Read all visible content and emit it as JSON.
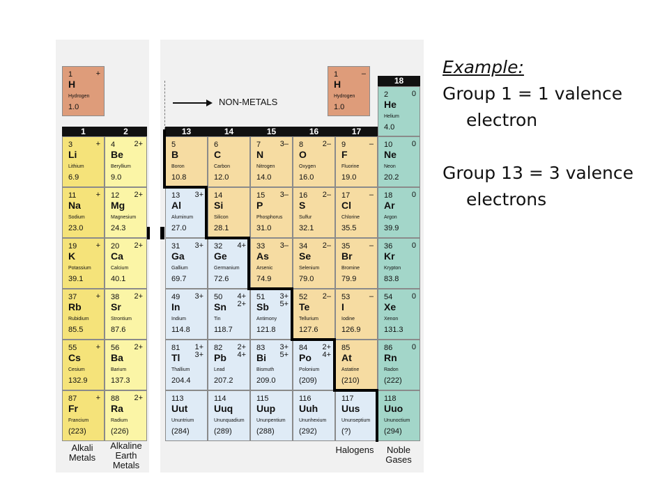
{
  "colors": {
    "alkali": "#f5e37a",
    "alkaline_earth": "#fbf5a6",
    "nonmetal": "#f6dca2",
    "metal": "#dfebf6",
    "noble": "#a3d6c9",
    "hydrogen": "#de9c7a"
  },
  "text_panel": {
    "example_heading": "Example:",
    "line1a": "Group 1 = 1 valence",
    "line1b": "electron",
    "line2a": "Group 13 = 3 valence",
    "line2b": "electrons"
  },
  "table": {
    "non_metals_label": "NON-METALS",
    "group_headers": [
      "1",
      "2",
      "13",
      "14",
      "15",
      "16",
      "17",
      "18"
    ],
    "bottom_labels": {
      "alkali": "Alkali\nMetals",
      "alkaline": "Alkaline\nEarth\nMetals",
      "halogens": "Halogens",
      "noble": "Noble\nGases"
    },
    "hydrogen_left": {
      "number": "1",
      "charge": "+",
      "symbol": "H",
      "name": "Hydrogen",
      "mass": "1.0"
    },
    "hydrogen_right": {
      "number": "1",
      "charge": "–",
      "symbol": "H",
      "name": "Hydrogen",
      "mass": "1.0"
    },
    "group1": [
      {
        "number": "3",
        "charge": "+",
        "symbol": "Li",
        "name": "Lithium",
        "mass": "6.9"
      },
      {
        "number": "11",
        "charge": "+",
        "symbol": "Na",
        "name": "Sodium",
        "mass": "23.0"
      },
      {
        "number": "19",
        "charge": "+",
        "symbol": "K",
        "name": "Potassium",
        "mass": "39.1"
      },
      {
        "number": "37",
        "charge": "+",
        "symbol": "Rb",
        "name": "Rubidium",
        "mass": "85.5"
      },
      {
        "number": "55",
        "charge": "+",
        "symbol": "Cs",
        "name": "Cesium",
        "mass": "132.9"
      },
      {
        "number": "87",
        "charge": "+",
        "symbol": "Fr",
        "name": "Francium",
        "mass": "(223)"
      }
    ],
    "group2": [
      {
        "number": "4",
        "charge": "2+",
        "symbol": "Be",
        "name": "Beryllium",
        "mass": "9.0"
      },
      {
        "number": "12",
        "charge": "2+",
        "symbol": "Mg",
        "name": "Magnesium",
        "mass": "24.3"
      },
      {
        "number": "20",
        "charge": "2+",
        "symbol": "Ca",
        "name": "Calcium",
        "mass": "40.1"
      },
      {
        "number": "38",
        "charge": "2+",
        "symbol": "Sr",
        "name": "Strontium",
        "mass": "87.6"
      },
      {
        "number": "56",
        "charge": "2+",
        "symbol": "Ba",
        "name": "Barium",
        "mass": "137.3"
      },
      {
        "number": "88",
        "charge": "2+",
        "symbol": "Ra",
        "name": "Radium",
        "mass": "(226)"
      }
    ],
    "group13": [
      {
        "number": "5",
        "charge": "",
        "symbol": "B",
        "name": "Boron",
        "mass": "10.8",
        "kind": "nonmetal"
      },
      {
        "number": "13",
        "charge": "3+",
        "symbol": "Al",
        "name": "Aluminum",
        "mass": "27.0",
        "kind": "metal"
      },
      {
        "number": "31",
        "charge": "3+",
        "symbol": "Ga",
        "name": "Gallium",
        "mass": "69.7",
        "kind": "metal"
      },
      {
        "number": "49",
        "charge": "3+",
        "symbol": "In",
        "name": "Indium",
        "mass": "114.8",
        "kind": "metal"
      },
      {
        "number": "81",
        "charge": "1+\n3+",
        "symbol": "Tl",
        "name": "Thallium",
        "mass": "204.4",
        "kind": "metal"
      },
      {
        "number": "113",
        "charge": "",
        "symbol": "Uut",
        "name": "Ununtrium",
        "mass": "(284)",
        "kind": "metal"
      }
    ],
    "group14": [
      {
        "number": "6",
        "charge": "",
        "symbol": "C",
        "name": "Carbon",
        "mass": "12.0",
        "kind": "nonmetal"
      },
      {
        "number": "14",
        "charge": "",
        "symbol": "Si",
        "name": "Silicon",
        "mass": "28.1",
        "kind": "nonmetal"
      },
      {
        "number": "32",
        "charge": "4+",
        "symbol": "Ge",
        "name": "Germanium",
        "mass": "72.6",
        "kind": "metal"
      },
      {
        "number": "50",
        "charge": "4+\n2+",
        "symbol": "Sn",
        "name": "Tin",
        "mass": "118.7",
        "kind": "metal"
      },
      {
        "number": "82",
        "charge": "2+\n4+",
        "symbol": "Pb",
        "name": "Lead",
        "mass": "207.2",
        "kind": "metal"
      },
      {
        "number": "114",
        "charge": "",
        "symbol": "Uuq",
        "name": "Ununquadium",
        "mass": "(289)",
        "kind": "metal"
      }
    ],
    "group15": [
      {
        "number": "7",
        "charge": "3–",
        "symbol": "N",
        "name": "Nitrogen",
        "mass": "14.0",
        "kind": "nonmetal"
      },
      {
        "number": "15",
        "charge": "3–",
        "symbol": "P",
        "name": "Phosphorus",
        "mass": "31.0",
        "kind": "nonmetal"
      },
      {
        "number": "33",
        "charge": "3–",
        "symbol": "As",
        "name": "Arsenic",
        "mass": "74.9",
        "kind": "nonmetal"
      },
      {
        "number": "51",
        "charge": "3+\n5+",
        "symbol": "Sb",
        "name": "Antimony",
        "mass": "121.8",
        "kind": "metal"
      },
      {
        "number": "83",
        "charge": "3+\n5+",
        "symbol": "Bi",
        "name": "Bismuth",
        "mass": "209.0",
        "kind": "metal"
      },
      {
        "number": "115",
        "charge": "",
        "symbol": "Uup",
        "name": "Ununpentium",
        "mass": "(288)",
        "kind": "metal"
      }
    ],
    "group16": [
      {
        "number": "8",
        "charge": "2–",
        "symbol": "O",
        "name": "Oxygen",
        "mass": "16.0",
        "kind": "nonmetal"
      },
      {
        "number": "16",
        "charge": "2–",
        "symbol": "S",
        "name": "Sulfur",
        "mass": "32.1",
        "kind": "nonmetal"
      },
      {
        "number": "34",
        "charge": "2–",
        "symbol": "Se",
        "name": "Selenium",
        "mass": "79.0",
        "kind": "nonmetal"
      },
      {
        "number": "52",
        "charge": "2–",
        "symbol": "Te",
        "name": "Tellurium",
        "mass": "127.6",
        "kind": "nonmetal"
      },
      {
        "number": "84",
        "charge": "2+\n4+",
        "symbol": "Po",
        "name": "Polonium",
        "mass": "(209)",
        "kind": "metal"
      },
      {
        "number": "116",
        "charge": "",
        "symbol": "Uuh",
        "name": "Ununhexium",
        "mass": "(292)",
        "kind": "metal"
      }
    ],
    "group17": [
      {
        "number": "9",
        "charge": "–",
        "symbol": "F",
        "name": "Fluorine",
        "mass": "19.0",
        "kind": "nonmetal"
      },
      {
        "number": "17",
        "charge": "–",
        "symbol": "Cl",
        "name": "Chlorine",
        "mass": "35.5",
        "kind": "nonmetal"
      },
      {
        "number": "35",
        "charge": "–",
        "symbol": "Br",
        "name": "Bromine",
        "mass": "79.9",
        "kind": "nonmetal"
      },
      {
        "number": "53",
        "charge": "–",
        "symbol": "I",
        "name": "Iodine",
        "mass": "126.9",
        "kind": "nonmetal"
      },
      {
        "number": "85",
        "charge": "",
        "symbol": "At",
        "name": "Astatine",
        "mass": "(210)",
        "kind": "nonmetal"
      },
      {
        "number": "117",
        "charge": "",
        "symbol": "Uus",
        "name": "Ununseptium",
        "mass": "(?)",
        "kind": "metal"
      }
    ],
    "group18": [
      {
        "number": "2",
        "charge": "0",
        "symbol": "He",
        "name": "Helium",
        "mass": "4.0"
      },
      {
        "number": "10",
        "charge": "0",
        "symbol": "Ne",
        "name": "Neon",
        "mass": "20.2"
      },
      {
        "number": "18",
        "charge": "0",
        "symbol": "Ar",
        "name": "Argon",
        "mass": "39.9"
      },
      {
        "number": "36",
        "charge": "0",
        "symbol": "Kr",
        "name": "Krypton",
        "mass": "83.8"
      },
      {
        "number": "54",
        "charge": "0",
        "symbol": "Xe",
        "name": "Xenon",
        "mass": "131.3"
      },
      {
        "number": "86",
        "charge": "0",
        "symbol": "Rn",
        "name": "Radon",
        "mass": "(222)"
      },
      {
        "number": "118",
        "charge": "",
        "symbol": "Uuo",
        "name": "Ununoctium",
        "mass": "(294)"
      }
    ]
  }
}
